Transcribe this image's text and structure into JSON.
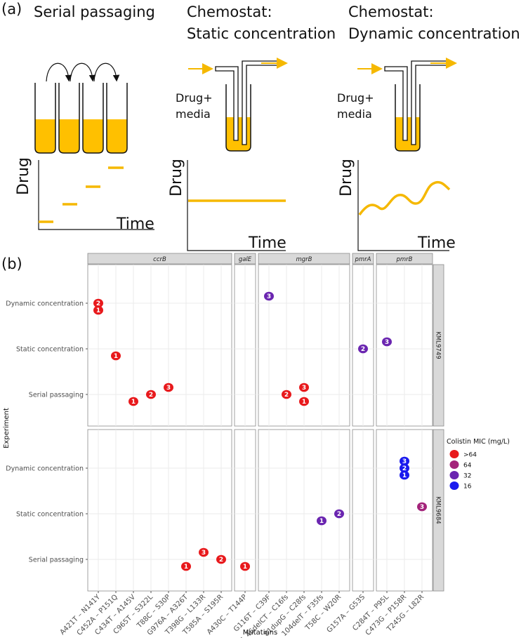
{
  "panel_a": {
    "label": "(a)",
    "schemes": [
      {
        "title": [
          "Serial passaging"
        ],
        "y_label": "Drug",
        "x_label": "Time"
      },
      {
        "title": [
          "Chemostat:",
          "Static concentration"
        ],
        "inflow": [
          "Drug+",
          "media"
        ],
        "y_label": "Drug",
        "x_label": "Time"
      },
      {
        "title": [
          "Chemostat:",
          "Dynamic concentration"
        ],
        "inflow": [
          "Drug+",
          "media"
        ],
        "y_label": "Drug",
        "x_label": "Time"
      }
    ]
  },
  "chart_data": {
    "type": "dot",
    "label": "(b)",
    "x_label": "Mutations",
    "y_label": "Experiment",
    "columns": [
      {
        "name": "ccrB",
        "categories": [
          "A421T – N141Y",
          "C452A – P151Q",
          "C434T – A145V",
          "C965T – S322L",
          "T88C – S30P",
          "G976A – A326T",
          "T398G – L133R",
          "T585A – S195R"
        ]
      },
      {
        "name": "galE",
        "categories": [
          "A430C – T144P"
        ]
      },
      {
        "name": "mgrB",
        "categories": [
          "G116T – C39F",
          "45_46delCT – C16fs",
          "81dupG – C28fs",
          "104delT – F35fs",
          "T58C – W20R"
        ]
      },
      {
        "name": "pmrA",
        "categories": [
          "G157A – G53S"
        ]
      },
      {
        "name": "pmrB",
        "categories": [
          "C284T – P95L",
          "C473G – P158R",
          "T245G – L82R"
        ]
      }
    ],
    "rows": [
      "KML9749",
      "KML9684"
    ],
    "experiments": [
      "Dynamic concentration",
      "Static concentration",
      "Serial passaging"
    ],
    "legend_title": "Colistin MIC (mg/L)",
    "legend": [
      {
        "label": ">64",
        "color": "#e8191c"
      },
      {
        "label": "64",
        "color": "#a3237a"
      },
      {
        "label": "32",
        "color": "#6a25b0"
      },
      {
        "label": "16",
        "color": "#1a1aee"
      }
    ],
    "points": [
      {
        "row": "KML9749",
        "mutation": "A421T – N141Y",
        "experiment": "Dynamic concentration",
        "replicate": 2,
        "mic": ">64"
      },
      {
        "row": "KML9749",
        "mutation": "A421T – N141Y",
        "experiment": "Dynamic concentration",
        "replicate": 1,
        "mic": ">64"
      },
      {
        "row": "KML9749",
        "mutation": "G116T – C39F",
        "experiment": "Dynamic concentration",
        "replicate": 3,
        "mic": "32"
      },
      {
        "row": "KML9749",
        "mutation": "C452A – P151Q",
        "experiment": "Static concentration",
        "replicate": 1,
        "mic": ">64"
      },
      {
        "row": "KML9749",
        "mutation": "G157A – G53S",
        "experiment": "Static concentration",
        "replicate": 2,
        "mic": "32"
      },
      {
        "row": "KML9749",
        "mutation": "C284T – P95L",
        "experiment": "Static concentration",
        "replicate": 3,
        "mic": "32"
      },
      {
        "row": "KML9749",
        "mutation": "C434T – A145V",
        "experiment": "Serial passaging",
        "replicate": 1,
        "mic": ">64"
      },
      {
        "row": "KML9749",
        "mutation": "C965T – S322L",
        "experiment": "Serial passaging",
        "replicate": 2,
        "mic": ">64"
      },
      {
        "row": "KML9749",
        "mutation": "T88C – S30P",
        "experiment": "Serial passaging",
        "replicate": 3,
        "mic": ">64"
      },
      {
        "row": "KML9749",
        "mutation": "45_46delCT – C16fs",
        "experiment": "Serial passaging",
        "replicate": 2,
        "mic": ">64"
      },
      {
        "row": "KML9749",
        "mutation": "81dupG – C28fs",
        "experiment": "Serial passaging",
        "replicate": 3,
        "mic": ">64"
      },
      {
        "row": "KML9749",
        "mutation": "81dupG – C28fs",
        "experiment": "Serial passaging",
        "replicate": 1,
        "mic": ">64"
      },
      {
        "row": "KML9684",
        "mutation": "C473G – P158R",
        "experiment": "Dynamic concentration",
        "replicate": 3,
        "mic": "16"
      },
      {
        "row": "KML9684",
        "mutation": "C473G – P158R",
        "experiment": "Dynamic concentration",
        "replicate": 2,
        "mic": "16"
      },
      {
        "row": "KML9684",
        "mutation": "C473G – P158R",
        "experiment": "Dynamic concentration",
        "replicate": 1,
        "mic": "16"
      },
      {
        "row": "KML9684",
        "mutation": "104delT – F35fs",
        "experiment": "Static concentration",
        "replicate": 1,
        "mic": "32"
      },
      {
        "row": "KML9684",
        "mutation": "T58C – W20R",
        "experiment": "Static concentration",
        "replicate": 2,
        "mic": "32"
      },
      {
        "row": "KML9684",
        "mutation": "T245G – L82R",
        "experiment": "Static concentration",
        "replicate": 3,
        "mic": "64"
      },
      {
        "row": "KML9684",
        "mutation": "G976A – A326T",
        "experiment": "Serial passaging",
        "replicate": 1,
        "mic": ">64"
      },
      {
        "row": "KML9684",
        "mutation": "T398G – L133R",
        "experiment": "Serial passaging",
        "replicate": 3,
        "mic": ">64"
      },
      {
        "row": "KML9684",
        "mutation": "T585A – S195R",
        "experiment": "Serial passaging",
        "replicate": 2,
        "mic": ">64"
      },
      {
        "row": "KML9684",
        "mutation": "A430C – T144P",
        "experiment": "Serial passaging",
        "replicate": 1,
        "mic": ">64"
      }
    ]
  }
}
